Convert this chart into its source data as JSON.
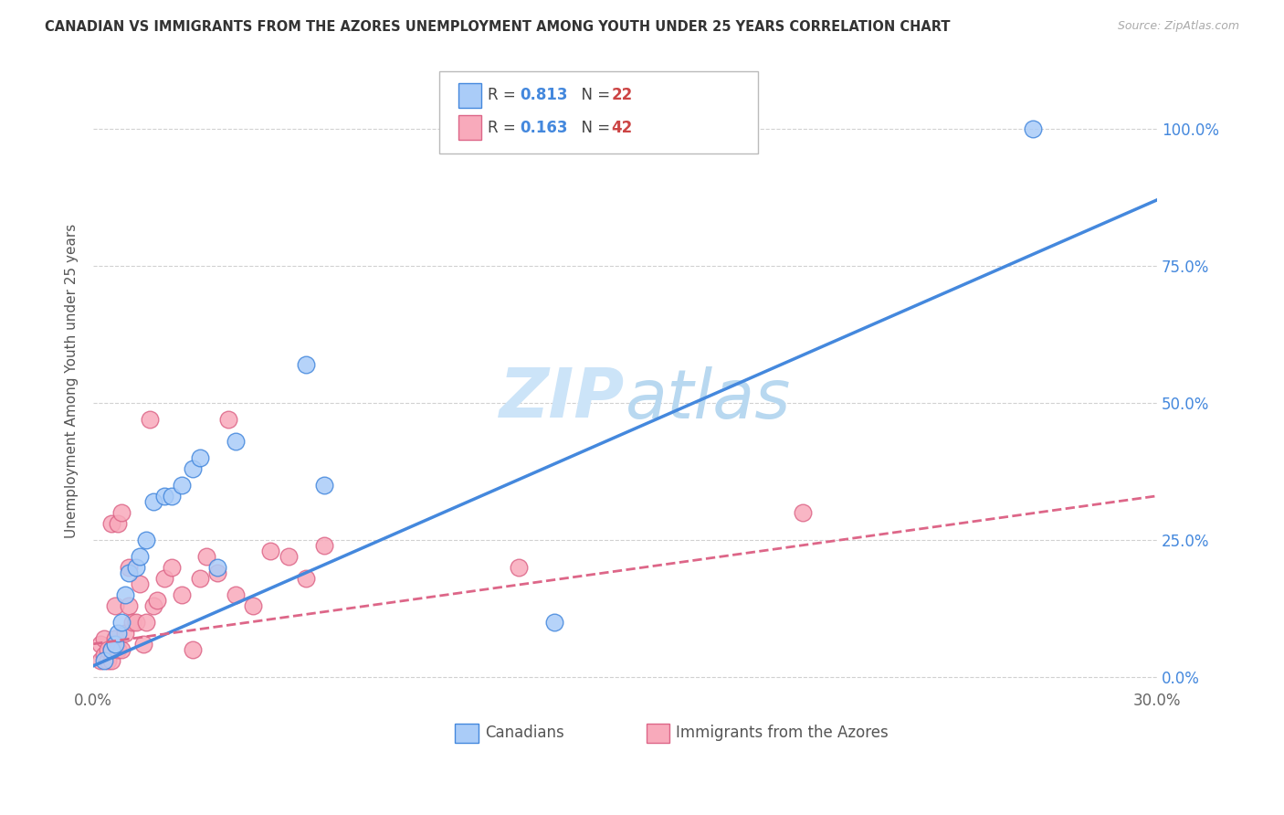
{
  "title": "CANADIAN VS IMMIGRANTS FROM THE AZORES UNEMPLOYMENT AMONG YOUTH UNDER 25 YEARS CORRELATION CHART",
  "source": "Source: ZipAtlas.com",
  "ylabel": "Unemployment Among Youth under 25 years",
  "xlabel_canadians": "Canadians",
  "xlabel_azores": "Immigrants from the Azores",
  "legend_canadian_R": "0.813",
  "legend_canadian_N": "22",
  "legend_azores_R": "0.163",
  "legend_azores_N": "42",
  "xlim": [
    0.0,
    0.3
  ],
  "ylim": [
    -0.02,
    1.1
  ],
  "xticks": [
    0.0,
    0.05,
    0.1,
    0.15,
    0.2,
    0.25,
    0.3
  ],
  "yticks": [
    0.0,
    0.25,
    0.5,
    0.75,
    1.0
  ],
  "ytick_labels": [
    "0.0%",
    "25.0%",
    "50.0%",
    "75.0%",
    "100.0%"
  ],
  "xtick_labels": [
    "0.0%",
    "",
    "",
    "",
    "",
    "",
    "30.0%"
  ],
  "canadian_x": [
    0.003,
    0.005,
    0.006,
    0.007,
    0.008,
    0.009,
    0.01,
    0.012,
    0.013,
    0.015,
    0.017,
    0.02,
    0.022,
    0.025,
    0.028,
    0.03,
    0.035,
    0.04,
    0.06,
    0.065,
    0.13,
    0.265
  ],
  "canadian_y": [
    0.03,
    0.05,
    0.06,
    0.08,
    0.1,
    0.15,
    0.19,
    0.2,
    0.22,
    0.25,
    0.32,
    0.33,
    0.33,
    0.35,
    0.38,
    0.4,
    0.2,
    0.43,
    0.57,
    0.35,
    0.1,
    1.0
  ],
  "azores_x": [
    0.002,
    0.002,
    0.003,
    0.003,
    0.004,
    0.004,
    0.005,
    0.005,
    0.005,
    0.006,
    0.006,
    0.007,
    0.007,
    0.008,
    0.008,
    0.009,
    0.01,
    0.01,
    0.011,
    0.012,
    0.013,
    0.014,
    0.015,
    0.016,
    0.017,
    0.018,
    0.02,
    0.022,
    0.025,
    0.028,
    0.03,
    0.032,
    0.035,
    0.038,
    0.04,
    0.045,
    0.05,
    0.055,
    0.06,
    0.065,
    0.12,
    0.2
  ],
  "azores_y": [
    0.03,
    0.06,
    0.04,
    0.07,
    0.03,
    0.05,
    0.03,
    0.05,
    0.28,
    0.07,
    0.13,
    0.05,
    0.28,
    0.05,
    0.3,
    0.08,
    0.13,
    0.2,
    0.1,
    0.1,
    0.17,
    0.06,
    0.1,
    0.47,
    0.13,
    0.14,
    0.18,
    0.2,
    0.15,
    0.05,
    0.18,
    0.22,
    0.19,
    0.47,
    0.15,
    0.13,
    0.23,
    0.22,
    0.18,
    0.24,
    0.2,
    0.3
  ],
  "canadian_color": "#aaccf8",
  "canadian_line_color": "#4488dd",
  "azores_color": "#f8aabb",
  "azores_line_color": "#dd6688",
  "background_color": "#ffffff",
  "watermark_color": "#cce4f8",
  "canadian_trendline": [
    0.0,
    0.3,
    0.02,
    0.87
  ],
  "azores_trendline": [
    0.0,
    0.3,
    0.06,
    0.33
  ]
}
